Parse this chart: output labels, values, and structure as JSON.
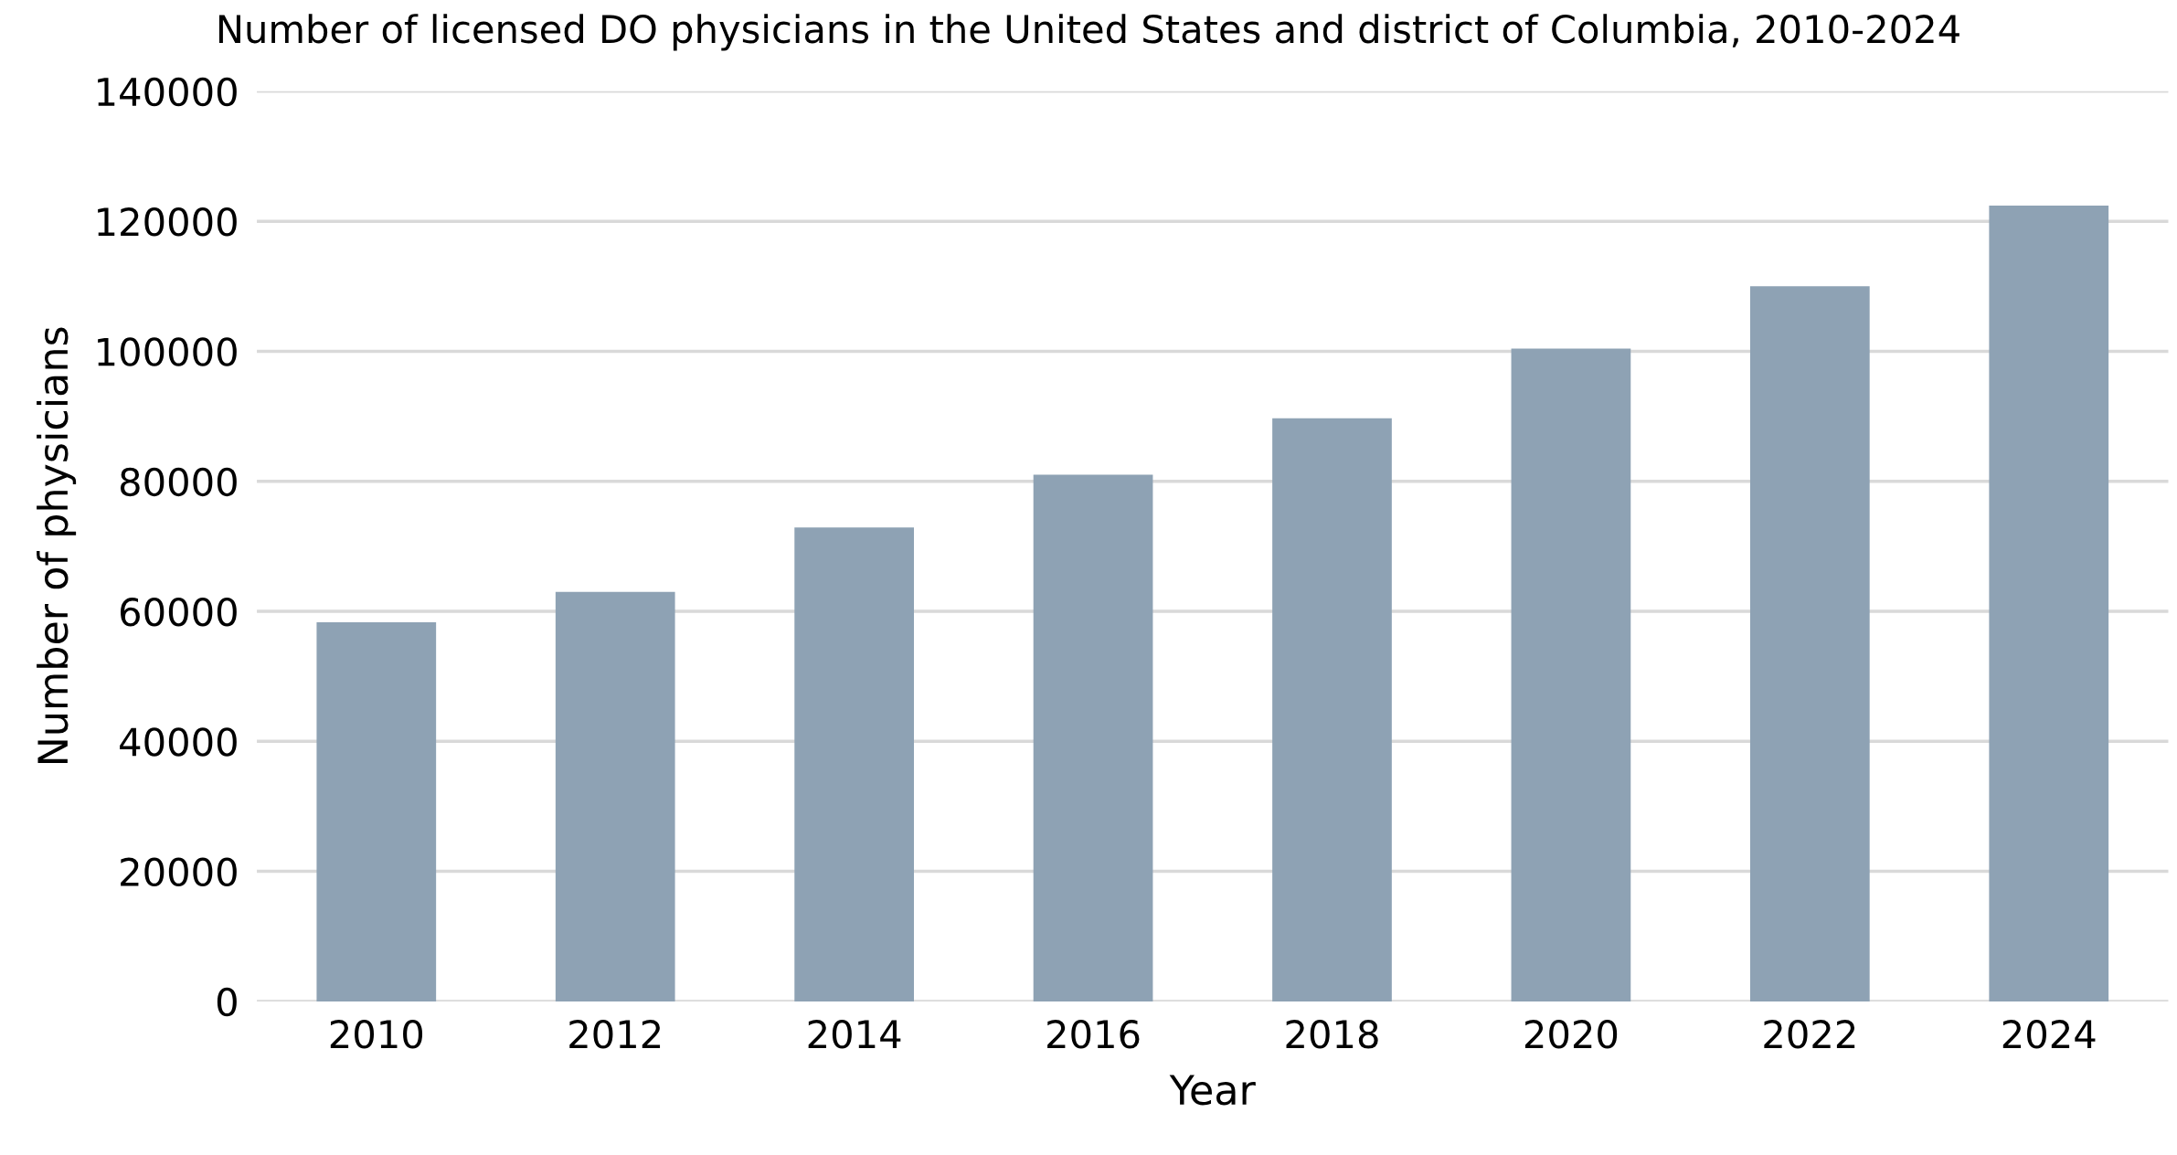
{
  "chart_data": {
    "type": "bar",
    "title": "Number of licensed DO physicians in the United States and district of Columbia, 2010-2024",
    "xlabel": "Year",
    "ylabel": "Number of physicians",
    "categories": [
      "2010",
      "2012",
      "2014",
      "2016",
      "2018",
      "2020",
      "2022",
      "2024"
    ],
    "values": [
      58300,
      63000,
      72900,
      81000,
      89700,
      100400,
      110000,
      122400
    ],
    "color": "#8ea2b4",
    "ylim": [
      0,
      140000
    ],
    "yticks": [
      0,
      20000,
      40000,
      60000,
      80000,
      100000,
      120000,
      140000
    ],
    "grid": "y"
  }
}
